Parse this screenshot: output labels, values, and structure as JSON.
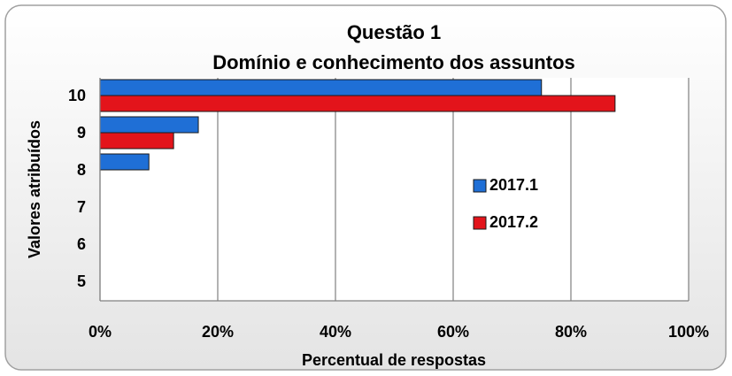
{
  "chart_data": {
    "type": "hbar",
    "title": "Questão 1",
    "subtitle": "Domínio e conhecimento dos assuntos",
    "x_label": "Percentual de respostas",
    "y_label": "Valores atribuídos",
    "categories": [
      "5",
      "6",
      "7",
      "8",
      "9",
      "10"
    ],
    "series": [
      {
        "name": "2017.1",
        "color": "#1f6fd6",
        "values": [
          0,
          0,
          0,
          8.3,
          16.7,
          75
        ]
      },
      {
        "name": "2017.2",
        "color": "#e3141b",
        "values": [
          0,
          0,
          0,
          0,
          12.5,
          87.5
        ]
      }
    ],
    "xlim": [
      0,
      100
    ],
    "xticks": [
      {
        "value": 0,
        "label": "0%"
      },
      {
        "value": 20,
        "label": "20%"
      },
      {
        "value": 40,
        "label": "40%"
      },
      {
        "value": 60,
        "label": "60%"
      },
      {
        "value": 80,
        "label": "80%"
      },
      {
        "value": 100,
        "label": "100%"
      }
    ],
    "grid": true,
    "legend": "right"
  }
}
